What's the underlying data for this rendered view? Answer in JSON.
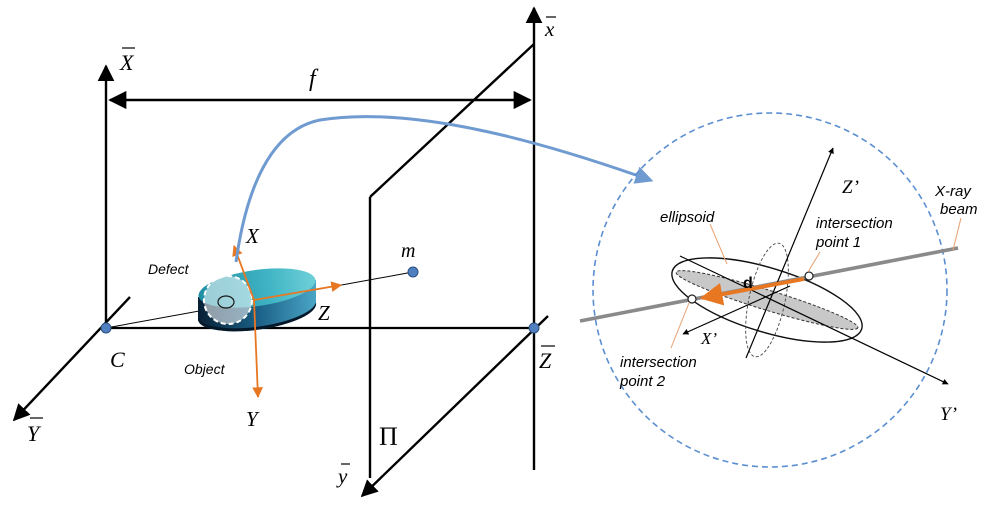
{
  "labels": {
    "X_bar": "X",
    "f": "f",
    "x_bar": "x",
    "C": "C",
    "Y_bar": "Y",
    "Z_bar": "Z",
    "y_bar": "y",
    "Pi": "Π",
    "m": "m",
    "X": "X",
    "Y": "Y",
    "Z": "Z",
    "defect": "Defect",
    "object": "Object",
    "ellipsoid": "ellipsoid",
    "ip1_line1": "intersection",
    "ip1_line2": "point 1",
    "ip2_line1": "intersection",
    "ip2_line2": "point 2",
    "xray_line1": "X-ray",
    "xray_line2": "beam",
    "d": "d",
    "Z_prime": "Z’",
    "X_prime": "X’",
    "Y_prime": "Y’"
  },
  "colors": {
    "axis": "#000000",
    "orange": "#e87722",
    "blue_arrow": "#6f9bd1",
    "dashed_circle": "#5b8fd0",
    "beam": "#8a8a8a",
    "object_top": "#2e9fb0",
    "object_side": "#0d3f5f",
    "point": "#4f7fbf"
  }
}
